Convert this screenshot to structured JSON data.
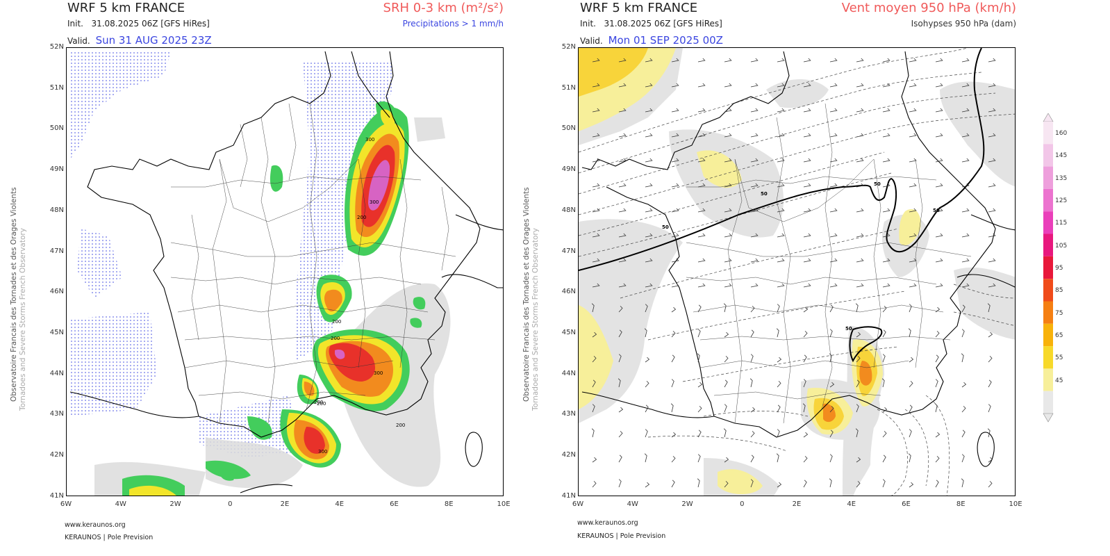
{
  "left_panel": {
    "model_title": "WRF 5 km FRANCE",
    "init_label": "Init.",
    "init_value": "31.08.2025 06Z [GFS HiRes]",
    "valid_label": "Valid.",
    "valid_value": "Sun 31 AUG 2025 23Z",
    "parameter_title": "SRH 0-3 km (m²/s²)",
    "parameter_subtitle": "Precipitations > 1 mm/h",
    "subtitle_color": "#3a45e0",
    "side_label_1": "Observatoire Francais des Tornades et des Orages Violents",
    "side_label_2": "Tornadoes and Severe Storms French Observatory",
    "footer_url": "www.keraunos.org",
    "footer_org": "KERAUNOS | Pole Prevision",
    "contour_labels": [
      "300",
      "200",
      "300",
      "200",
      "200",
      "300",
      "200",
      "200",
      "200",
      "300"
    ]
  },
  "right_panel": {
    "model_title": "WRF 5 km FRANCE",
    "init_label": "Init.",
    "init_value": "31.08.2025 06Z [GFS HiRes]",
    "valid_label": "Valid.",
    "valid_value": "Mon 01 SEP 2025 00Z",
    "parameter_title": "Vent moyen 950 hPa (km/h)",
    "parameter_subtitle": "Isohypses 950 hPa (dam)",
    "subtitle_color": "#333333",
    "side_label_1": "Observatoire Francais des Tornades et des Orages Violents",
    "side_label_2": "Tornadoes and Severe Storms French Observatory",
    "footer_url": "www.keraunos.org",
    "footer_org": "KERAUNOS | Pole Prevision",
    "contour_labels": [
      "50",
      "50",
      "50",
      "50",
      "50"
    ]
  },
  "axes": {
    "lat_labels": [
      "52N",
      "51N",
      "50N",
      "49N",
      "48N",
      "47N",
      "46N",
      "45N",
      "44N",
      "43N",
      "42N",
      "41N"
    ],
    "lon_labels": [
      "6W",
      "4W",
      "2W",
      "0",
      "2E",
      "4E",
      "6E",
      "8E",
      "10E"
    ]
  },
  "colorbar": {
    "labels": [
      "160",
      "145",
      "135",
      "125",
      "115",
      "105",
      "95",
      "85",
      "75",
      "65",
      "55",
      "45"
    ],
    "colors": [
      "#f7e6f2",
      "#f2c6e8",
      "#ee9fdc",
      "#ec73cf",
      "#ea3fba",
      "#e8187e",
      "#e8183a",
      "#f04b1a",
      "#f57f12",
      "#f8b20a",
      "#f7d92a",
      "#f7ef9a",
      "#e8e8e8"
    ]
  },
  "srh_palette": {
    "gray": "#d9d9d9",
    "green": "#3fcd5a",
    "yellow": "#f2e52a",
    "orange": "#f28b1e",
    "red": "#e8312a",
    "pink": "#e066c8"
  }
}
